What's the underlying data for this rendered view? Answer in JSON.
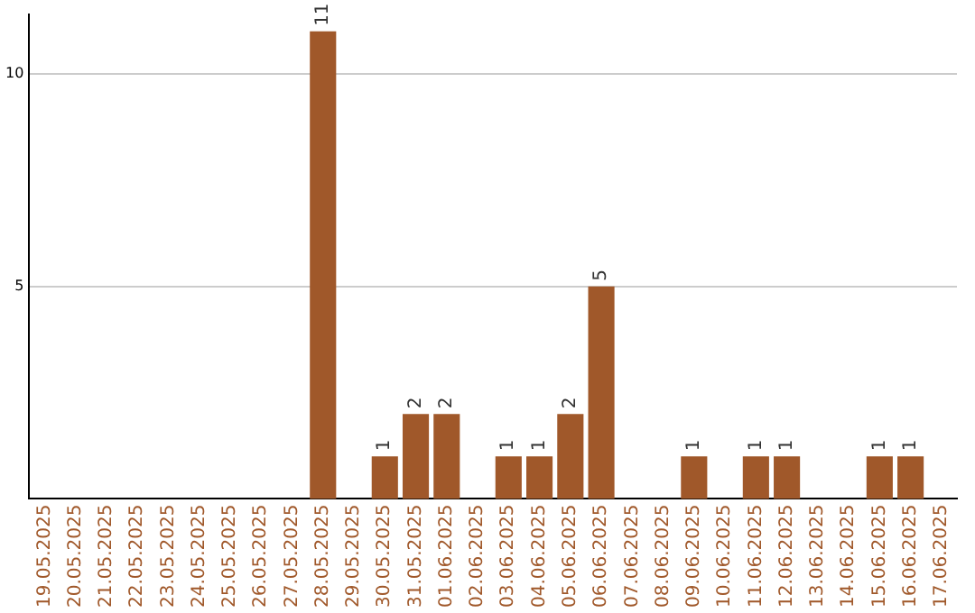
{
  "chart_data": {
    "type": "bar",
    "categories": [
      "19.05.2025",
      "20.05.2025",
      "21.05.2025",
      "22.05.2025",
      "23.05.2025",
      "24.05.2025",
      "25.05.2025",
      "26.05.2025",
      "27.05.2025",
      "28.05.2025",
      "29.05.2025",
      "30.05.2025",
      "31.05.2025",
      "01.06.2025",
      "02.06.2025",
      "03.06.2025",
      "04.06.2025",
      "05.06.2025",
      "06.06.2025",
      "07.06.2025",
      "08.06.2025",
      "09.06.2025",
      "10.06.2025",
      "11.06.2025",
      "12.06.2025",
      "13.06.2025",
      "14.06.2025",
      "15.06.2025",
      "16.06.2025",
      "17.06.2025"
    ],
    "values": [
      0,
      0,
      0,
      0,
      0,
      0,
      0,
      0,
      0,
      11,
      0,
      1,
      2,
      2,
      0,
      1,
      1,
      2,
      5,
      0,
      0,
      1,
      0,
      1,
      1,
      0,
      0,
      1,
      1,
      0
    ],
    "value_labels": [
      null,
      null,
      null,
      null,
      null,
      null,
      null,
      null,
      null,
      "11",
      null,
      "1",
      "2",
      "2",
      null,
      "1",
      "1",
      "2",
      "5",
      null,
      null,
      "1",
      null,
      "1",
      "1",
      null,
      null,
      "1",
      "1",
      null
    ],
    "color": "#a0582a",
    "ylim": [
      0,
      11.4
    ],
    "yticks": [
      5,
      10
    ],
    "grid": "y",
    "legend": false
  }
}
